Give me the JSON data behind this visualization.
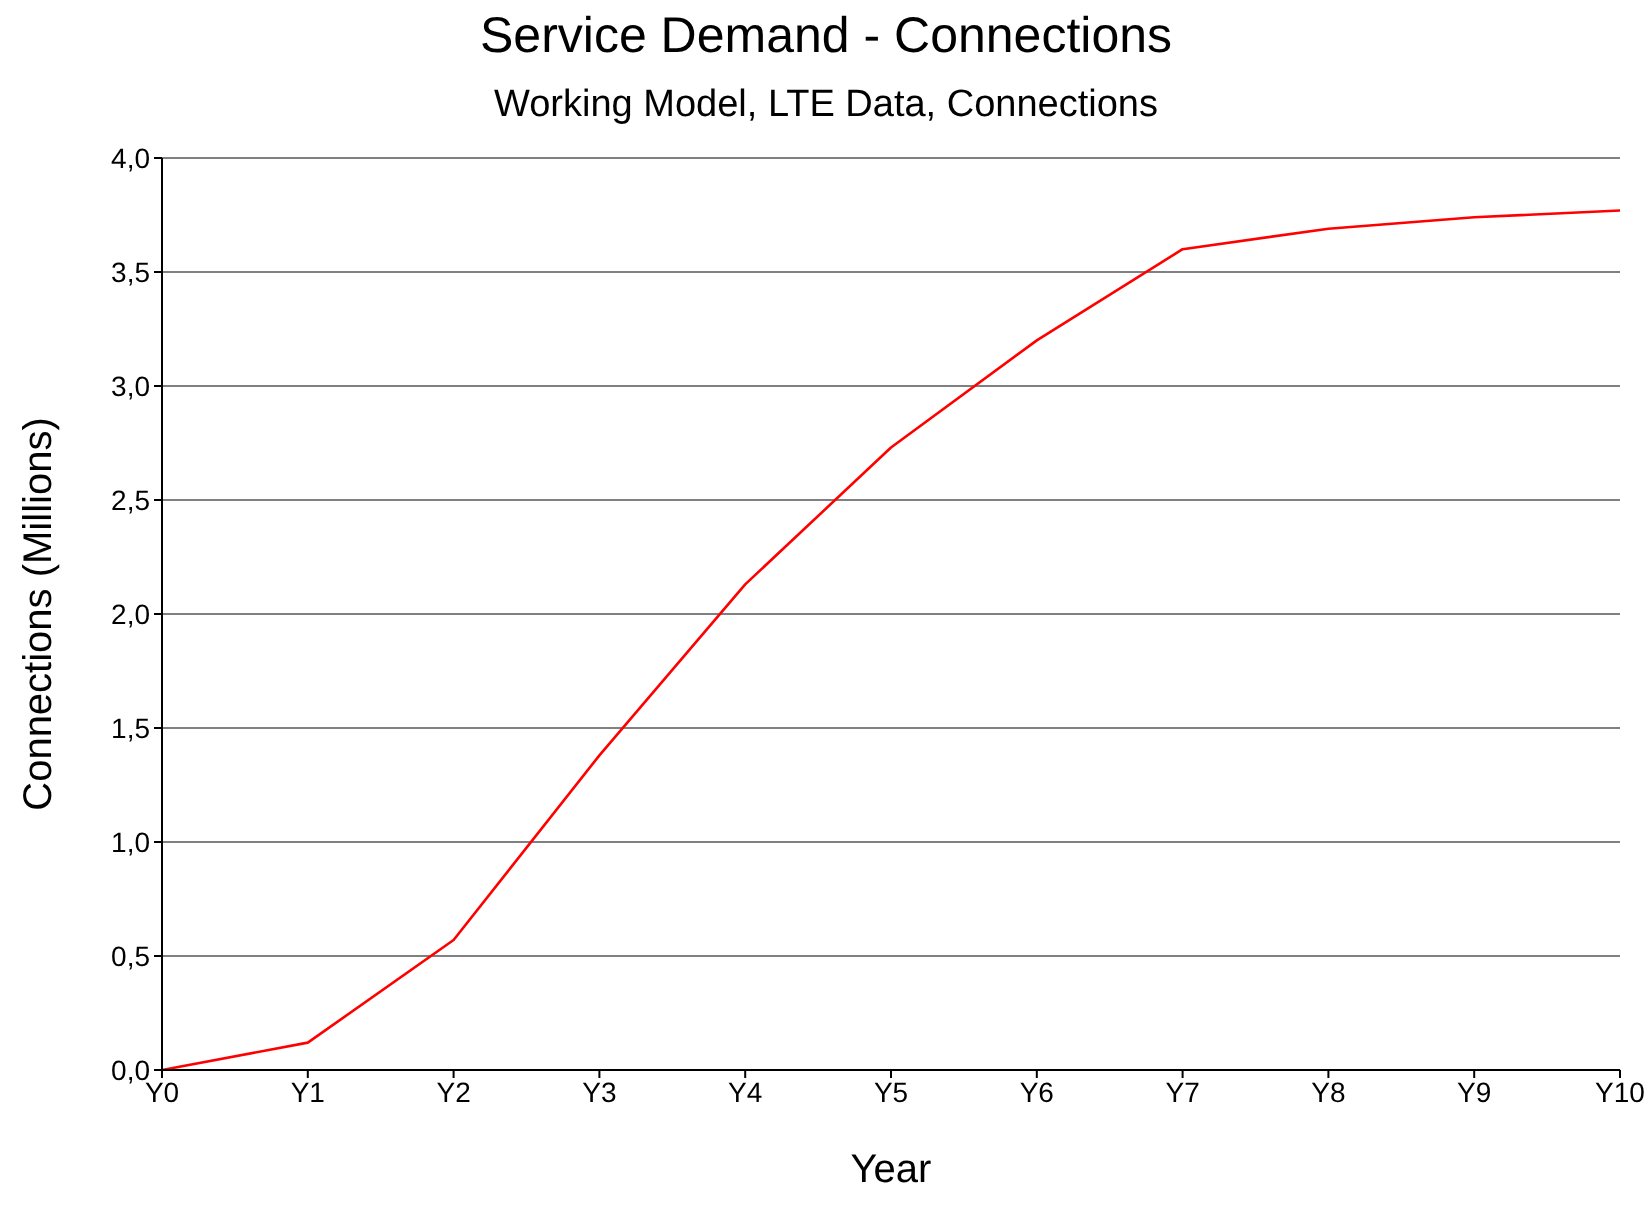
{
  "chart_data": {
    "type": "line",
    "title": "Service Demand - Connections",
    "subtitle": "Working Model, LTE Data, Connections",
    "xlabel": "Year",
    "ylabel": "Connections  (Millions)",
    "categories": [
      "Y0",
      "Y1",
      "Y2",
      "Y3",
      "Y4",
      "Y5",
      "Y6",
      "Y7",
      "Y8",
      "Y9",
      "Y10"
    ],
    "series": [
      {
        "color": "#ff0000",
        "values": [
          0,
          0.12,
          0.57,
          1.38,
          2.13,
          2.73,
          3.2,
          3.6,
          3.69,
          3.74,
          3.77
        ]
      }
    ],
    "ylim": [
      0,
      4
    ],
    "yticks": [
      {
        "value": 0,
        "label": "0,0"
      },
      {
        "value": 0.5,
        "label": "0,5"
      },
      {
        "value": 1,
        "label": "1,0"
      },
      {
        "value": 1.5,
        "label": "1,5"
      },
      {
        "value": 2,
        "label": "2,0"
      },
      {
        "value": 2.5,
        "label": "2,5"
      },
      {
        "value": 3,
        "label": "3,0"
      },
      {
        "value": 3.5,
        "label": "3,5"
      },
      {
        "value": 4,
        "label": "4,0"
      }
    ],
    "grid": "y",
    "legend": false,
    "marker": "none",
    "line_style": "solid"
  }
}
